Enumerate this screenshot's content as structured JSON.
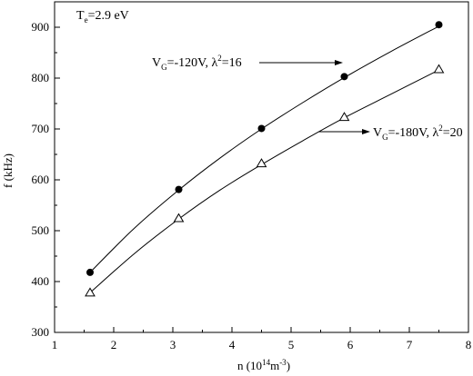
{
  "chart_data": {
    "type": "scatter",
    "xlim": [
      1,
      8
    ],
    "ylim": [
      300,
      950
    ],
    "x_ticks": [
      1,
      2,
      3,
      4,
      5,
      6,
      7,
      8
    ],
    "y_ticks": [
      300,
      400,
      500,
      600,
      700,
      800,
      900
    ],
    "x_tick_labels": [
      "1",
      "2",
      "3",
      "4",
      "5",
      "6",
      "7",
      "8"
    ],
    "y_tick_labels": [
      "300",
      "400",
      "500",
      "600",
      "700",
      "800",
      "900"
    ],
    "xlabel": {
      "main": "n (10",
      "sup": "14",
      "mid": "m",
      "sup2": "-3",
      "end": ")"
    },
    "ylabel": "f (kHz)",
    "grid": false,
    "series": [
      {
        "marker": "filled-circle",
        "color": "#000000",
        "x": [
          1.6,
          3.1,
          4.5,
          5.9,
          7.5
        ],
        "y": [
          418,
          581,
          701,
          803,
          905
        ],
        "fit": [
          [
            1.6,
            418
          ],
          [
            2.35,
            505
          ],
          [
            3.1,
            580
          ],
          [
            3.8,
            643
          ],
          [
            4.5,
            700
          ],
          [
            5.2,
            752
          ],
          [
            5.9,
            801
          ],
          [
            6.7,
            853
          ],
          [
            7.5,
            902
          ]
        ]
      },
      {
        "marker": "open-triangle",
        "color": "#000000",
        "x": [
          1.6,
          3.1,
          4.5,
          5.9,
          7.5
        ],
        "y": [
          378,
          524,
          632,
          723,
          817
        ],
        "fit": [
          [
            1.6,
            378
          ],
          [
            2.35,
            455
          ],
          [
            3.1,
            523
          ],
          [
            3.8,
            580
          ],
          [
            4.5,
            630
          ],
          [
            5.2,
            677
          ],
          [
            5.9,
            722
          ],
          [
            6.7,
            769
          ],
          [
            7.5,
            816
          ]
        ]
      }
    ],
    "annotations": [
      {
        "base": "T",
        "sub": "e",
        "rest": "=2.9 eV"
      },
      {
        "base": "V",
        "sub": "G",
        "mid": "=-120V, λ",
        "sup": "2",
        "end": "=16"
      },
      {
        "base": "V",
        "sub": "G",
        "mid": "=-180V, λ",
        "sup": "2",
        "end": "=20"
      }
    ]
  }
}
